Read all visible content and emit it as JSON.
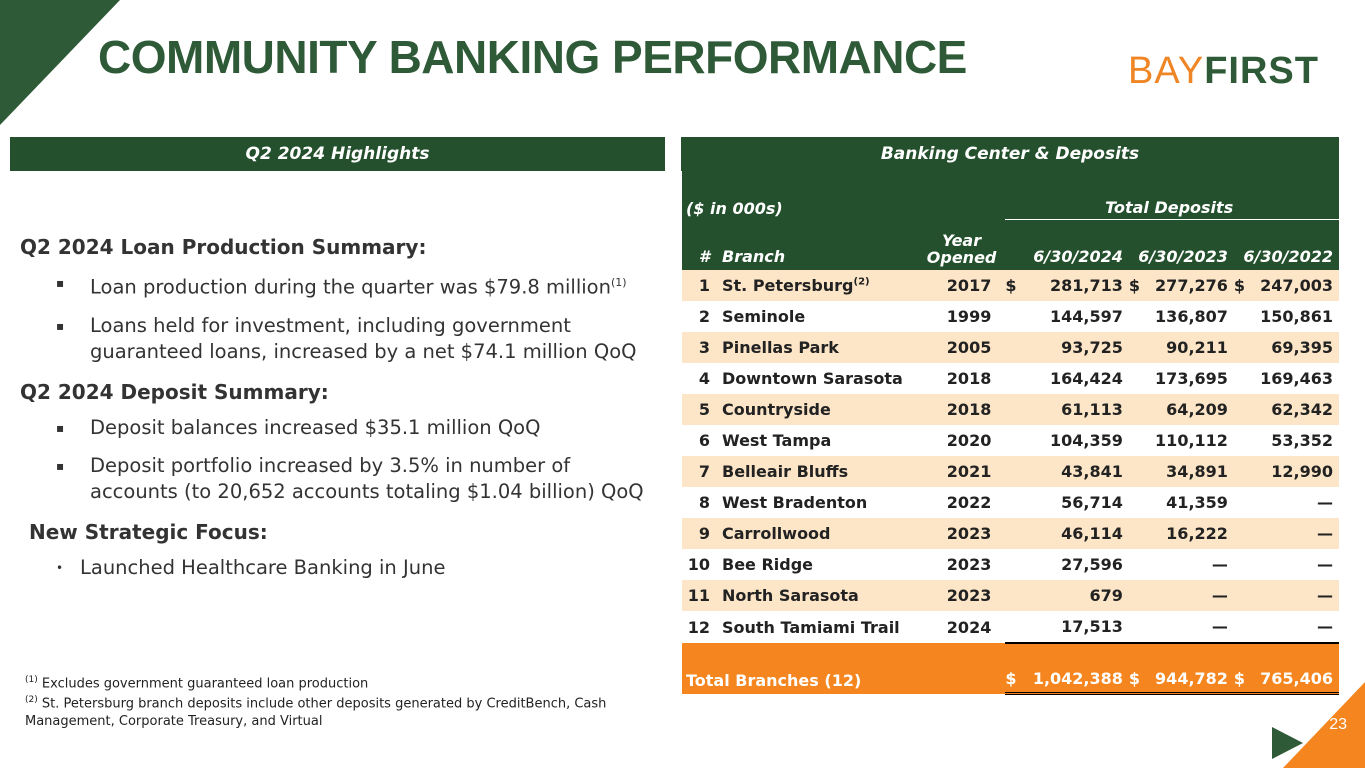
{
  "title": "COMMUNITY BANKING PERFORMANCE",
  "logo": {
    "part1": "BAY",
    "part2": "FIRST"
  },
  "left_panel": {
    "heading": "Q2 2024 Highlights",
    "loan_title": "Q2 2024 Loan Production Summary:",
    "loan_bullets": [
      "Loan production during the quarter was $79.8 million",
      "Loans held for investment, including government guaranteed loans, increased by a net $74.1 million QoQ"
    ],
    "loan_bullet_1_sup": "(1)",
    "deposit_title": "Q2 2024 Deposit Summary:",
    "deposit_bullets": [
      "Deposit balances increased $35.1 million QoQ",
      "Deposit portfolio increased by 3.5% in number of accounts (to 20,652 accounts totaling $1.04 billion) QoQ"
    ],
    "focus_title": "New Strategic Focus:",
    "focus_bullets": [
      "Launched Healthcare Banking in June"
    ],
    "bullet_mark": "▪",
    "focus_mark": "•"
  },
  "footnotes": [
    {
      "sup": "(1)",
      "text": "Excludes government guaranteed loan production"
    },
    {
      "sup": "(2)",
      "text": "St. Petersburg branch deposits include other deposits generated by CreditBench, Cash Management, Corporate Treasury, and Virtual"
    }
  ],
  "table": {
    "heading": "Banking Center & Deposits",
    "units": "($ in 000s)",
    "group_header": "Total Deposits",
    "col_num": "#",
    "col_branch": "Branch",
    "col_year_1": "Year",
    "col_year_2": "Opened",
    "col_dates": [
      "6/30/2024",
      "6/30/2023",
      "6/30/2022"
    ],
    "dollar": "$",
    "rows": [
      {
        "n": "1",
        "branch": "St. Petersburg",
        "sup": "(2)",
        "year": "2017",
        "d2024": "281,713",
        "d2023": "277,276",
        "d2022": "247,003"
      },
      {
        "n": "2",
        "branch": "Seminole",
        "year": "1999",
        "d2024": "144,597",
        "d2023": "136,807",
        "d2022": "150,861"
      },
      {
        "n": "3",
        "branch": "Pinellas Park",
        "year": "2005",
        "d2024": "93,725",
        "d2023": "90,211",
        "d2022": "69,395"
      },
      {
        "n": "4",
        "branch": "Downtown Sarasota",
        "year": "2018",
        "d2024": "164,424",
        "d2023": "173,695",
        "d2022": "169,463"
      },
      {
        "n": "5",
        "branch": "Countryside",
        "year": "2018",
        "d2024": "61,113",
        "d2023": "64,209",
        "d2022": "62,342"
      },
      {
        "n": "6",
        "branch": "West Tampa",
        "year": "2020",
        "d2024": "104,359",
        "d2023": "110,112",
        "d2022": "53,352"
      },
      {
        "n": "7",
        "branch": "Belleair Bluffs",
        "year": "2021",
        "d2024": "43,841",
        "d2023": "34,891",
        "d2022": "12,990"
      },
      {
        "n": "8",
        "branch": "West Bradenton",
        "year": "2022",
        "d2024": "56,714",
        "d2023": "41,359",
        "d2022": "—"
      },
      {
        "n": "9",
        "branch": "Carrollwood",
        "year": "2023",
        "d2024": "46,114",
        "d2023": "16,222",
        "d2022": "—"
      },
      {
        "n": "10",
        "branch": "Bee Ridge",
        "year": "2023",
        "d2024": "27,596",
        "d2023": "—",
        "d2022": "—"
      },
      {
        "n": "11",
        "branch": "North Sarasota",
        "year": "2023",
        "d2024": "679",
        "d2023": "—",
        "d2022": "—"
      },
      {
        "n": "12",
        "branch": "South Tamiami Trail",
        "year": "2024",
        "d2024": "17,513",
        "d2023": "—",
        "d2022": "—"
      }
    ],
    "total": {
      "label": "Total Branches (12)",
      "d2024": "1,042,388",
      "d2023": "944,782",
      "d2022": "765,406"
    }
  },
  "page_number": "23",
  "colors": {
    "green": "#2e5a37",
    "dark_green": "#24502d",
    "orange": "#f5861f",
    "shade": "#fde6c8"
  }
}
